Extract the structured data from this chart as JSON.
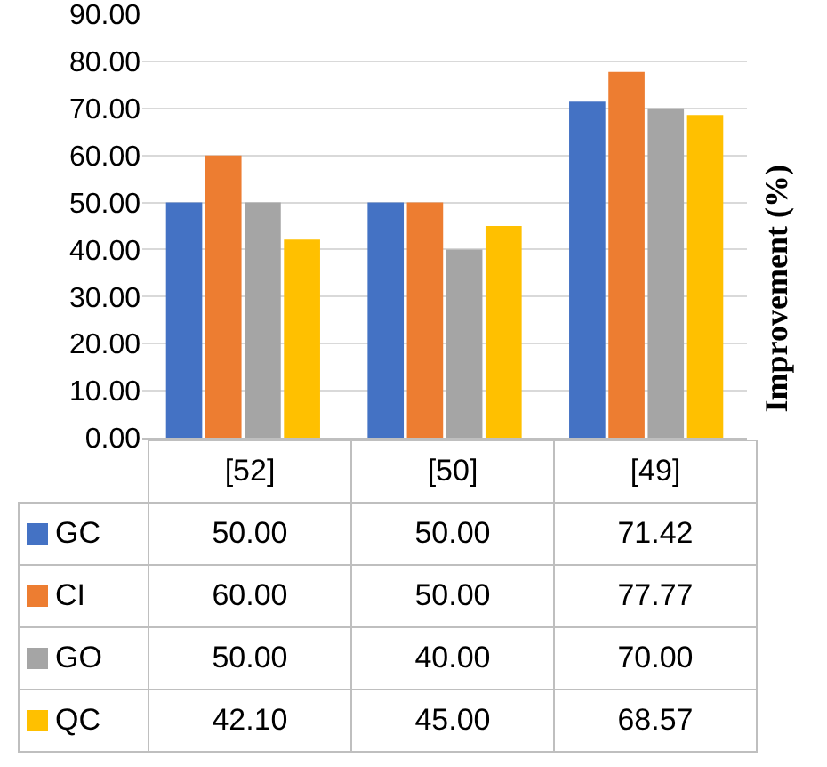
{
  "chart_data": {
    "type": "bar",
    "ylabel": "Improvement (%)",
    "categories": [
      "[52]",
      "[50]",
      "[49]"
    ],
    "series": [
      {
        "name": "GC",
        "color": "#4472c4",
        "values": [
          50.0,
          50.0,
          71.42
        ],
        "value_labels": [
          "50.00",
          "50.00",
          "71.42"
        ]
      },
      {
        "name": "CI",
        "color": "#ed7d31",
        "values": [
          60.0,
          50.0,
          77.77
        ],
        "value_labels": [
          "60.00",
          "50.00",
          "77.77"
        ]
      },
      {
        "name": "GO",
        "color": "#a5a5a5",
        "values": [
          50.0,
          40.0,
          70.0
        ],
        "value_labels": [
          "50.00",
          "40.00",
          "70.00"
        ]
      },
      {
        "name": "QC",
        "color": "#ffc000",
        "values": [
          42.1,
          45.0,
          68.57
        ],
        "value_labels": [
          "42.10",
          "45.00",
          "68.57"
        ]
      }
    ],
    "ylim": [
      0,
      90
    ],
    "yticks": [
      {
        "value": 0,
        "label": "0.00"
      },
      {
        "value": 10,
        "label": "10.00"
      },
      {
        "value": 20,
        "label": "20.00"
      },
      {
        "value": 30,
        "label": "30.00"
      },
      {
        "value": 40,
        "label": "40.00"
      },
      {
        "value": 50,
        "label": "50.00"
      },
      {
        "value": 60,
        "label": "60.00"
      },
      {
        "value": 70,
        "label": "70.00"
      },
      {
        "value": 80,
        "label": "80.00"
      },
      {
        "value": 90,
        "label": "90.00"
      }
    ],
    "grid": "y",
    "legend": "bottom"
  }
}
